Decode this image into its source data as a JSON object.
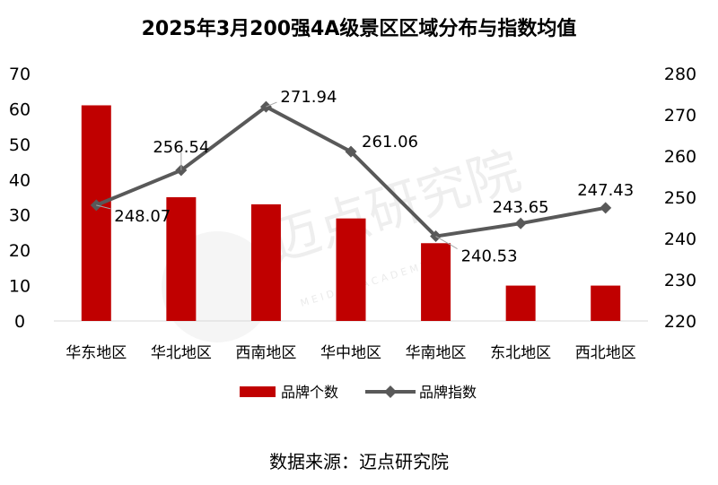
{
  "chart_data": {
    "type": "bar+line",
    "title": "2025年3月200强4A级景区区域分布与指数均值",
    "categories": [
      "华东地区",
      "华北地区",
      "西南地区",
      "华中地区",
      "华南地区",
      "东北地区",
      "西北地区"
    ],
    "series": [
      {
        "name": "品牌个数",
        "type": "bar",
        "axis": "left",
        "color": "#c00000",
        "values": [
          61,
          35,
          33,
          29,
          22,
          10,
          10
        ]
      },
      {
        "name": "品牌指数",
        "type": "line",
        "axis": "right",
        "color": "#595959",
        "values": [
          248.07,
          256.54,
          271.94,
          261.06,
          240.53,
          243.65,
          247.43
        ],
        "labels": [
          "248.07",
          "256.54",
          "271.94",
          "261.06",
          "240.53",
          "243.65",
          "247.43"
        ]
      }
    ],
    "y_left": {
      "min": 0,
      "max": 70,
      "step": 10,
      "ticks": [
        "0",
        "10",
        "20",
        "30",
        "40",
        "50",
        "60",
        "70"
      ]
    },
    "y_right": {
      "min": 220,
      "max": 280,
      "step": 10,
      "ticks": [
        "220",
        "230",
        "240",
        "250",
        "260",
        "270",
        "280"
      ]
    },
    "legend": [
      "品牌个数",
      "品牌指数"
    ],
    "source": "数据来源：迈点研究院"
  },
  "watermark": {
    "name": "迈点研究院",
    "latin": "M E I D I A N A C A D E M Y"
  }
}
